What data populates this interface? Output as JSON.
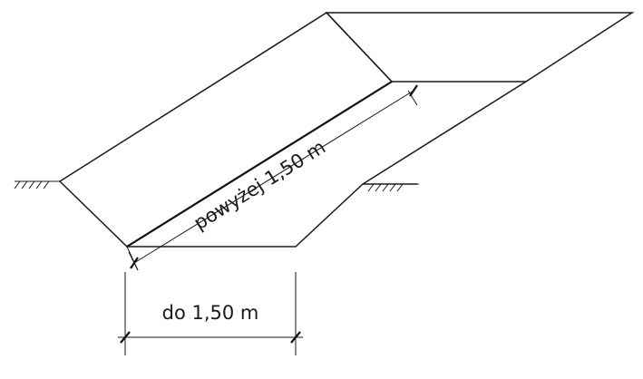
{
  "diagram": {
    "slope_length_label": "powyżej 1,50 m",
    "depth_label": "do 1,50 m",
    "colors": {
      "line": "#1a1a1a",
      "soil_fill": "#f6f6f2",
      "soil_dots": "#2b2b2b",
      "background": "#ffffff"
    },
    "icons": [
      "ground-surface-symbol-left",
      "ground-surface-symbol-right"
    ]
  }
}
